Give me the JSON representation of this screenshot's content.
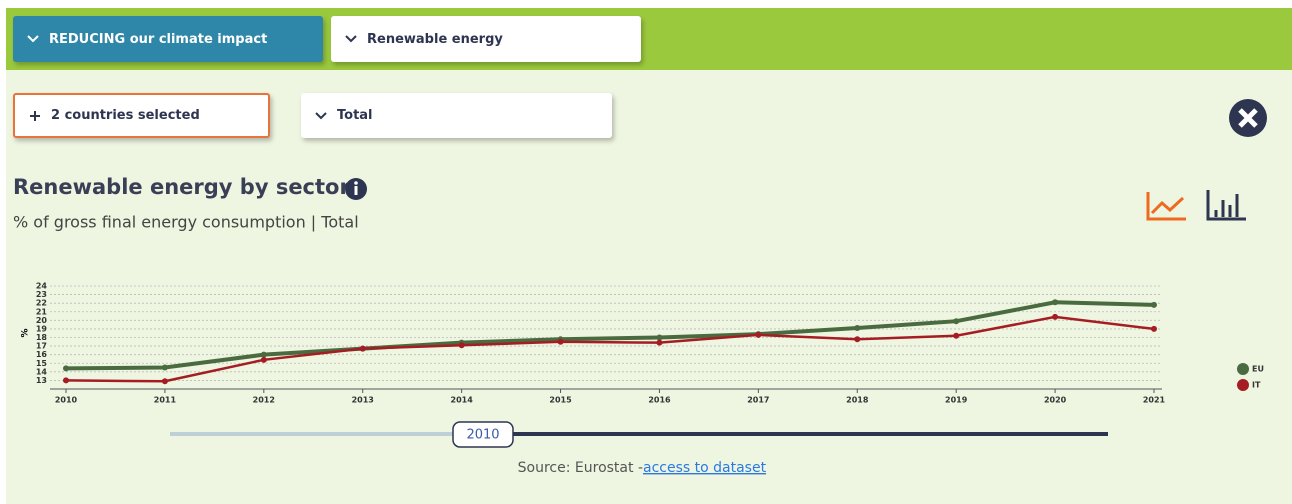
{
  "nav": {
    "theme": "REDUCING our climate impact",
    "topic": "Renewable energy"
  },
  "filters": {
    "countries": "2 countries selected",
    "sector": "Total"
  },
  "slider": {
    "label": "2010"
  },
  "source": {
    "text": "Source: Eurostat - ",
    "link": "access to dataset"
  },
  "chart_data": {
    "type": "line",
    "title": "Renewable energy by sector",
    "subtitle": "% of gross final energy consumption | Total",
    "y_label": "%",
    "categories": [
      "2010",
      "2011",
      "2012",
      "2013",
      "2014",
      "2015",
      "2016",
      "2017",
      "2018",
      "2019",
      "2020",
      "2021"
    ],
    "series": [
      {
        "name": "EU",
        "color": "#4a6b3f",
        "values": [
          14.4,
          14.5,
          16.0,
          16.7,
          17.4,
          17.8,
          18.0,
          18.4,
          19.1,
          19.9,
          22.1,
          21.8
        ]
      },
      {
        "name": "IT",
        "color": "#a51d22",
        "values": [
          13.0,
          12.9,
          15.4,
          16.7,
          17.1,
          17.5,
          17.4,
          18.3,
          17.8,
          18.2,
          20.4,
          19.0
        ]
      }
    ],
    "ylim": [
      12,
      24
    ],
    "yticks": [
      13,
      14,
      15,
      16,
      17,
      18,
      19,
      20,
      21,
      22,
      23,
      24
    ],
    "grid": true,
    "legend": "right"
  }
}
